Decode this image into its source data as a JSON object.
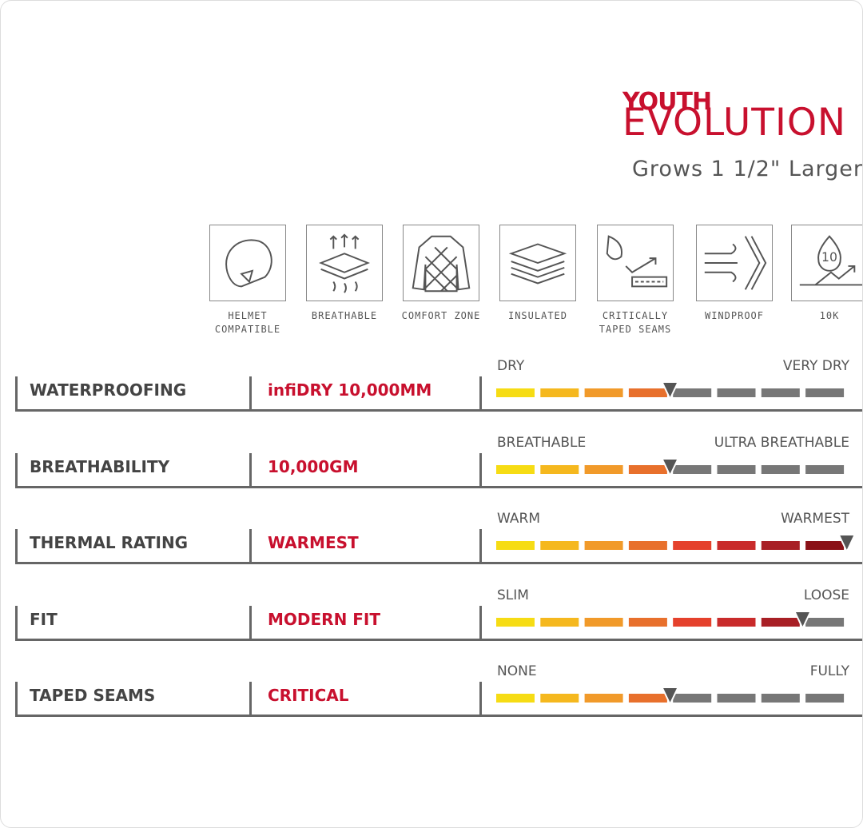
{
  "header": {
    "brand_top": "YOUTH",
    "brand_bottom": "EVOLUTION",
    "tagline": "Grows 1 1/2\" Larger"
  },
  "icons": [
    {
      "label": "HELMET COMPATIBLE"
    },
    {
      "label": "BREATHABLE"
    },
    {
      "label": "COMFORT ZONE"
    },
    {
      "label": "INSULATED"
    },
    {
      "label": "CRITICALLY TAPED SEAMS"
    },
    {
      "label": "WINDPROOF"
    },
    {
      "label": "10K",
      "badge": "10"
    }
  ],
  "segments": 8,
  "segment_colors": [
    "#f6dc14",
    "#f5b81e",
    "#f19a2a",
    "#e8702c",
    "#e5412c",
    "#c92b2b",
    "#a81f25",
    "#8a1117"
  ],
  "empty_color": "#777777",
  "rows": [
    {
      "name": "WATERPROOFING",
      "value": "infiDRY 10,000MM",
      "low": "DRY",
      "high": "VERY DRY",
      "level": 4
    },
    {
      "name": "BREATHABILITY",
      "value": "10,000GM",
      "low": "BREATHABLE",
      "high": "ULTRA BREATHABLE",
      "level": 4
    },
    {
      "name": "THERMAL RATING",
      "value": "WARMEST",
      "low": "WARM",
      "high": "WARMEST",
      "level": 8
    },
    {
      "name": "FIT",
      "value": "MODERN FIT",
      "low": "SLIM",
      "high": "LOOSE",
      "level": 7
    },
    {
      "name": "TAPED SEAMS",
      "value": "CRITICAL",
      "low": "NONE",
      "high": "FULLY",
      "level": 4
    }
  ]
}
